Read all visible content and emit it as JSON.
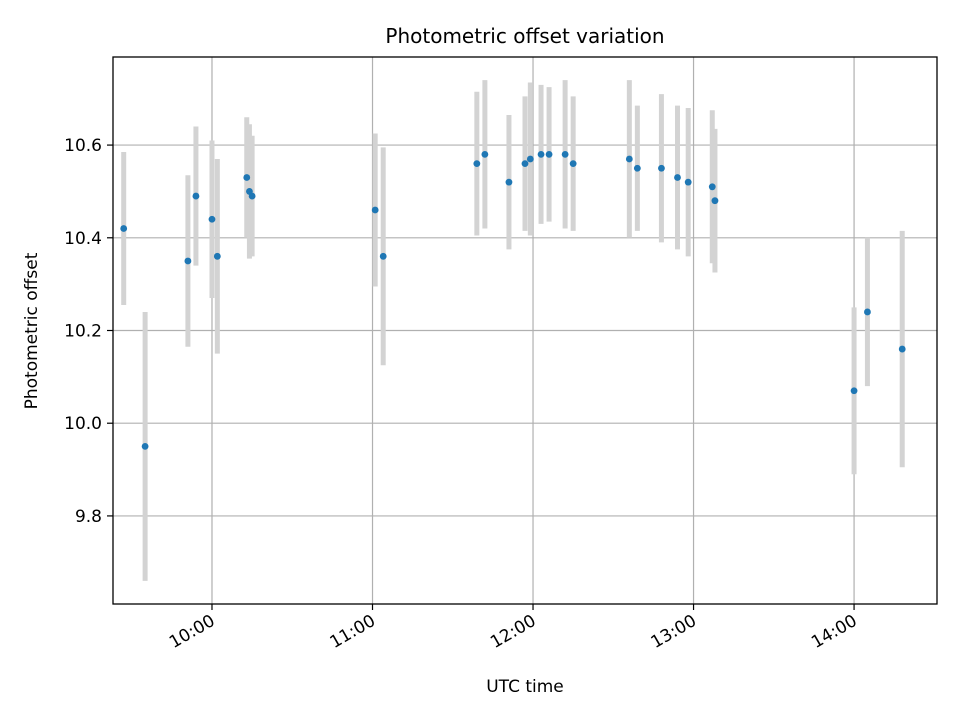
{
  "chart_data": {
    "type": "scatter",
    "title": "Photometric offset variation",
    "xlabel": "UTC time",
    "ylabel": "Photometric offset",
    "x_is_time": true,
    "xlim": [
      "09:23",
      "14:31"
    ],
    "ylim": [
      9.61,
      10.79
    ],
    "x_ticks": [
      "10:00",
      "11:00",
      "12:00",
      "13:00",
      "14:00"
    ],
    "y_ticks": [
      9.8,
      10.0,
      10.2,
      10.4,
      10.6
    ],
    "y_tick_labels": [
      "9.8",
      "10.0",
      "10.2",
      "10.4",
      "10.6"
    ],
    "grid": true,
    "errorbar_color": "#d3d3d3",
    "marker_color": "#1f77b4",
    "points": [
      {
        "x": "09:27",
        "y": 10.42,
        "err": 0.165
      },
      {
        "x": "09:35",
        "y": 9.95,
        "err": 0.29
      },
      {
        "x": "09:51",
        "y": 10.35,
        "err": 0.185
      },
      {
        "x": "09:54",
        "y": 10.49,
        "err": 0.15
      },
      {
        "x": "10:00",
        "y": 10.44,
        "err": 0.17
      },
      {
        "x": "10:02",
        "y": 10.36,
        "err": 0.21
      },
      {
        "x": "10:13",
        "y": 10.53,
        "err": 0.13
      },
      {
        "x": "10:14",
        "y": 10.5,
        "err": 0.145
      },
      {
        "x": "10:15",
        "y": 10.49,
        "err": 0.13
      },
      {
        "x": "11:01",
        "y": 10.46,
        "err": 0.165
      },
      {
        "x": "11:04",
        "y": 10.36,
        "err": 0.235
      },
      {
        "x": "11:39",
        "y": 10.56,
        "err": 0.155
      },
      {
        "x": "11:42",
        "y": 10.58,
        "err": 0.16
      },
      {
        "x": "11:51",
        "y": 10.52,
        "err": 0.145
      },
      {
        "x": "11:57",
        "y": 10.56,
        "err": 0.145
      },
      {
        "x": "11:59",
        "y": 10.57,
        "err": 0.165
      },
      {
        "x": "12:03",
        "y": 10.58,
        "err": 0.15
      },
      {
        "x": "12:06",
        "y": 10.58,
        "err": 0.145
      },
      {
        "x": "12:12",
        "y": 10.58,
        "err": 0.16
      },
      {
        "x": "12:15",
        "y": 10.56,
        "err": 0.145
      },
      {
        "x": "12:36",
        "y": 10.57,
        "err": 0.17
      },
      {
        "x": "12:39",
        "y": 10.55,
        "err": 0.135
      },
      {
        "x": "12:48",
        "y": 10.55,
        "err": 0.16
      },
      {
        "x": "12:54",
        "y": 10.53,
        "err": 0.155
      },
      {
        "x": "12:58",
        "y": 10.52,
        "err": 0.16
      },
      {
        "x": "13:07",
        "y": 10.51,
        "err": 0.165
      },
      {
        "x": "13:08",
        "y": 10.48,
        "err": 0.155
      },
      {
        "x": "14:00",
        "y": 10.07,
        "err": 0.18
      },
      {
        "x": "14:05",
        "y": 10.24,
        "err": 0.16
      },
      {
        "x": "14:18",
        "y": 10.16,
        "err": 0.255
      }
    ]
  }
}
